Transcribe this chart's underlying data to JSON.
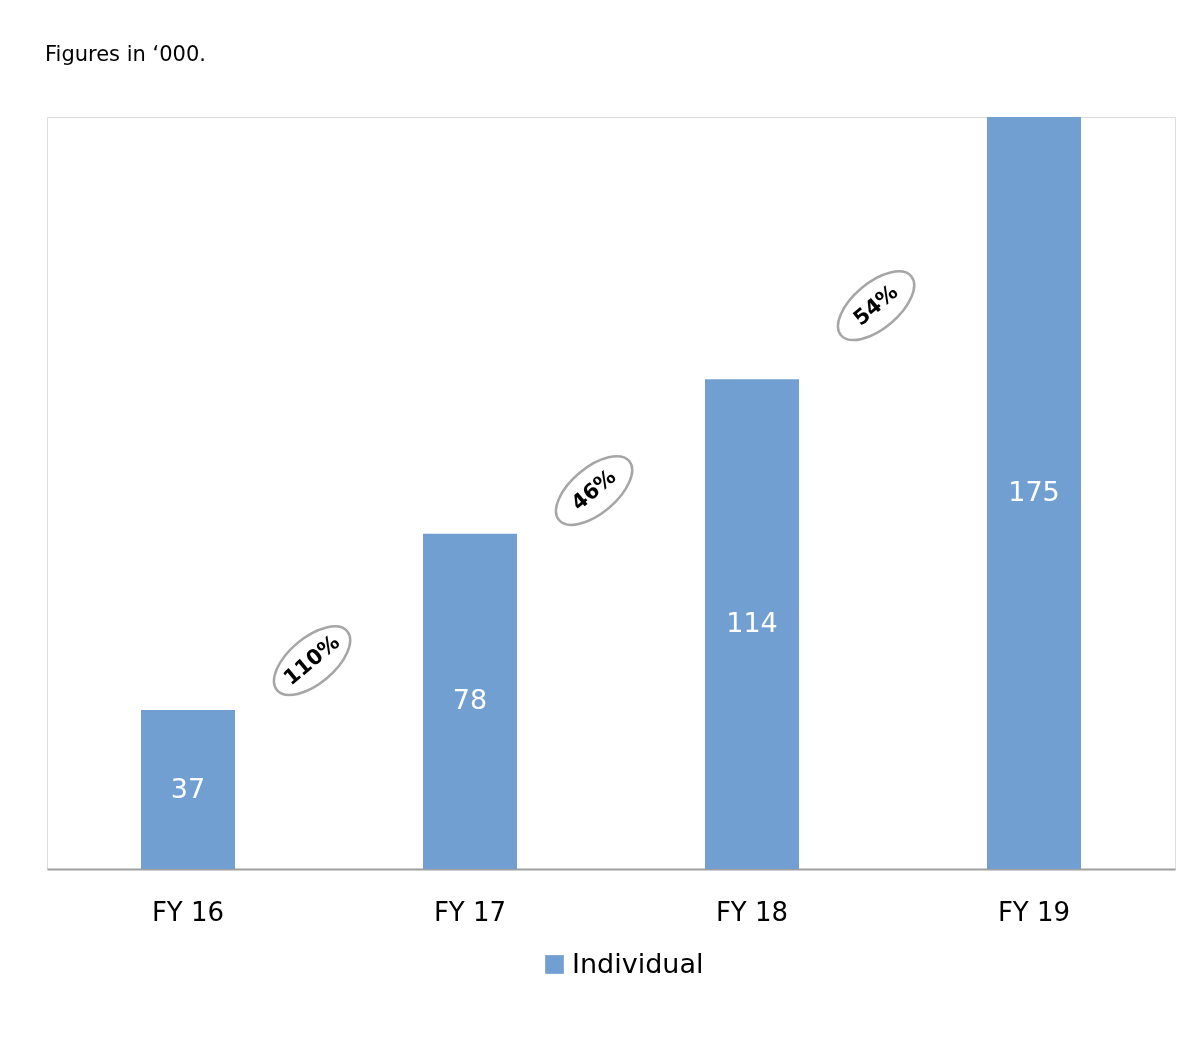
{
  "chart_data": {
    "type": "bar",
    "title": "Figures in ‘000.",
    "categories": [
      "FY 16",
      "FY 17",
      "FY 18",
      "FY 19"
    ],
    "series": [
      {
        "name": "Individual",
        "color": "#729fd2",
        "values": [
          37,
          78,
          114,
          175
        ]
      }
    ],
    "data_labels": true,
    "legend": "bottom",
    "grid": false,
    "annotations": [
      "110%",
      "46%",
      "54%"
    ]
  }
}
